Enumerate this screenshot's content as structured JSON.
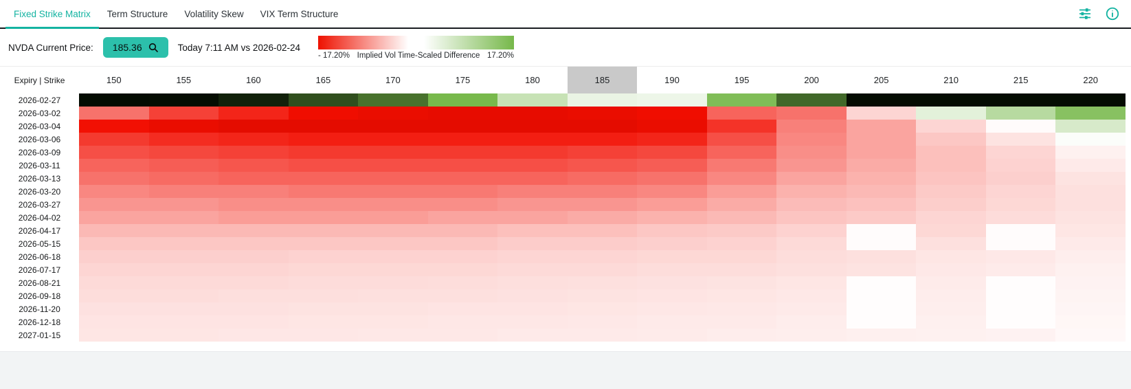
{
  "tabs": [
    {
      "label": "Fixed Strike Matrix",
      "active": true
    },
    {
      "label": "Term Structure",
      "active": false
    },
    {
      "label": "Volatility Skew",
      "active": false
    },
    {
      "label": "VIX Term Structure",
      "active": false
    }
  ],
  "toolbar": {
    "accent_color": "#13b3a1"
  },
  "price_bar": {
    "label": "NVDA Current Price:",
    "price": "185.36",
    "comparison": "Today 7:11 AM vs 2026-02-24"
  },
  "legend": {
    "min_label": "- 17.20%",
    "title": "Implied Vol Time-Scaled Difference",
    "max_label": "17.20%",
    "negative_color": "#ee1100",
    "positive_color": "#76b84a"
  },
  "matrix": {
    "corner_label": "Expiry | Strike",
    "highlighted_strike": "185",
    "highlight_color": "#c9c9c9"
  },
  "chart_data": {
    "type": "heatmap",
    "title": "Fixed Strike Matrix - Implied Vol Time-Scaled Difference",
    "xlabel": "Strike",
    "ylabel": "Expiry",
    "x": [
      "150",
      "155",
      "160",
      "165",
      "170",
      "175",
      "180",
      "185",
      "190",
      "195",
      "200",
      "205",
      "210",
      "215",
      "220"
    ],
    "y": [
      "2026-02-27",
      "2026-03-02",
      "2026-03-04",
      "2026-03-06",
      "2026-03-09",
      "2026-03-11",
      "2026-03-13",
      "2026-03-20",
      "2026-03-27",
      "2026-04-02",
      "2026-04-17",
      "2026-05-15",
      "2026-06-18",
      "2026-07-17",
      "2026-08-21",
      "2026-09-18",
      "2026-11-20",
      "2026-12-18",
      "2027-01-15"
    ],
    "scale": {
      "min": -17.2,
      "max": 17.2,
      "unit": "%"
    },
    "values": [
      [
        53,
        51,
        47,
        38,
        31,
        17,
        7,
        2.6,
        2.2,
        16,
        33,
        52,
        54,
        56,
        58
      ],
      [
        -10,
        -13.5,
        -15.5,
        -17.5,
        -18.5,
        -19,
        -19,
        -18.5,
        -17.5,
        -11,
        -10,
        -3,
        3.5,
        9,
        15
      ],
      [
        -17,
        -18.5,
        -19.5,
        -19.5,
        -19.5,
        -19.5,
        -19.5,
        -19.5,
        -18.5,
        -14.5,
        -9,
        -6.5,
        -3,
        -0.3,
        5
      ],
      [
        -14,
        -15,
        -15.5,
        -16,
        -16,
        -16,
        -16,
        -16,
        -15.5,
        -12.5,
        -8.5,
        -6.5,
        -4,
        -2,
        0.5
      ],
      [
        -12.5,
        -13,
        -13.5,
        -14,
        -14,
        -14,
        -14,
        -13.5,
        -13,
        -11,
        -8,
        -6.5,
        -4.5,
        -3,
        -1
      ],
      [
        -11,
        -11.5,
        -12,
        -12.5,
        -12.5,
        -12.5,
        -12.5,
        -12,
        -11.5,
        -9.5,
        -7.5,
        -6,
        -4.5,
        -3.2,
        -1.5
      ],
      [
        -10,
        -10.5,
        -11,
        -11,
        -11,
        -11,
        -11,
        -10.5,
        -10,
        -8.5,
        -6.5,
        -5.5,
        -4.2,
        -3.4,
        -2
      ],
      [
        -8.5,
        -9,
        -9,
        -9.5,
        -9.5,
        -9.5,
        -9,
        -9,
        -8.5,
        -7,
        -5.5,
        -5,
        -3.8,
        -3,
        -2.2
      ],
      [
        -7.5,
        -7.5,
        -8,
        -8,
        -8,
        -8,
        -7.5,
        -7.5,
        -7,
        -6,
        -4.8,
        -4.4,
        -3.5,
        -2.8,
        -2.2
      ],
      [
        -6.5,
        -6.5,
        -7,
        -7,
        -7,
        -6.5,
        -6.5,
        -6,
        -5.5,
        -5,
        -4.2,
        -3.8,
        -3,
        -2.5,
        -2
      ],
      [
        -5,
        -5,
        -5,
        -5,
        -5,
        -5,
        -4.5,
        -4.5,
        -4,
        -3.8,
        -3.2,
        -0.2,
        -2.8,
        -0.2,
        -1.8
      ],
      [
        -4,
        -4,
        -4,
        -4,
        -4,
        -4,
        -3.6,
        -3.6,
        -3.4,
        -3.2,
        -2.6,
        -0.2,
        -2.2,
        -0.2,
        -1.5
      ],
      [
        -3.4,
        -3.4,
        -3.4,
        -3.2,
        -3.2,
        -3.2,
        -3,
        -3,
        -2.8,
        -2.8,
        -2.4,
        -2.2,
        -1.8,
        -1.6,
        -1.2
      ],
      [
        -3,
        -3,
        -3,
        -2.8,
        -2.8,
        -2.8,
        -2.6,
        -2.6,
        -2.4,
        -2.4,
        -2.2,
        -2,
        -1.6,
        -1.4,
        -1
      ],
      [
        -2.6,
        -2.6,
        -2.6,
        -2.5,
        -2.5,
        -2.4,
        -2.3,
        -2.2,
        -2.1,
        -2,
        -1.8,
        -0.15,
        -1.4,
        -0.15,
        -0.9
      ],
      [
        -2.4,
        -2.4,
        -2.3,
        -2.3,
        -2.2,
        -2.2,
        -2.1,
        -2,
        -1.9,
        -1.8,
        -1.6,
        -0.15,
        -1.3,
        -0.15,
        -0.8
      ],
      [
        -2.1,
        -2.1,
        -2.1,
        -2,
        -2,
        -1.9,
        -1.9,
        -1.8,
        -1.7,
        -1.6,
        -1.5,
        -0.15,
        -1.2,
        -0.15,
        -0.7
      ],
      [
        -1.9,
        -1.9,
        -1.9,
        -1.8,
        -1.8,
        -1.7,
        -1.7,
        -1.6,
        -1.5,
        -1.5,
        -1.3,
        -0.15,
        -1.1,
        -0.15,
        -0.6
      ],
      [
        -1.8,
        -1.8,
        -1.7,
        -1.7,
        -1.6,
        -1.6,
        -1.5,
        -1.5,
        -1.4,
        -1.3,
        -1.2,
        -1.1,
        -1,
        -0.9,
        -0.5
      ]
    ]
  }
}
